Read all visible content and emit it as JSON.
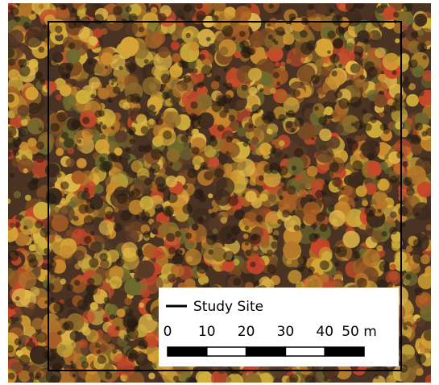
{
  "legend": {
    "label": "Study Site"
  },
  "scale_bar": {
    "labels": [
      "0",
      "10",
      "20",
      "30",
      "40",
      "50 m"
    ]
  }
}
